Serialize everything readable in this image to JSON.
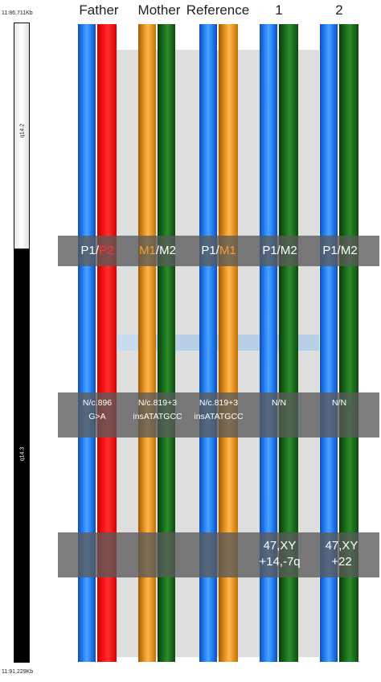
{
  "coords": {
    "top": "11:86,711Kb",
    "bottom": "11:91,229Kb"
  },
  "ideogram": {
    "band_top": "q14.2",
    "band_bottom": "q14.3"
  },
  "columns": [
    {
      "header": "Father",
      "tracks": [
        "blue",
        "red"
      ],
      "hap": [
        "P1",
        "P2"
      ],
      "hap_colors": [
        "#ffffff",
        "#ff3030"
      ],
      "variant": [
        "N/c.896",
        "G>A"
      ],
      "karyotype": [
        "",
        ""
      ]
    },
    {
      "header": "Mother",
      "tracks": [
        "orange",
        "green"
      ],
      "hap": [
        "M1",
        "M2"
      ],
      "hap_colors": [
        "#f0a030",
        "#ffffff"
      ],
      "variant": [
        "N/c.819+3",
        "insATATGCC"
      ],
      "karyotype": [
        "",
        ""
      ]
    },
    {
      "header": "Reference",
      "tracks": [
        "blue",
        "orange"
      ],
      "hap": [
        "P1",
        "M1"
      ],
      "hap_colors": [
        "#ffffff",
        "#f0a030"
      ],
      "variant": [
        "N/c.819+3",
        "insATATGCC"
      ],
      "karyotype": [
        "",
        ""
      ]
    },
    {
      "header": "1",
      "tracks": [
        "blue",
        "green"
      ],
      "hap": [
        "P1",
        "M2"
      ],
      "hap_colors": [
        "#ffffff",
        "#ffffff"
      ],
      "variant": [
        "N/N",
        ""
      ],
      "karyotype": [
        "47,XY",
        "+14,-7q"
      ]
    },
    {
      "header": "2",
      "tracks": [
        "blue",
        "green"
      ],
      "hap": [
        "P1",
        "M2"
      ],
      "hap_colors": [
        "#ffffff",
        "#ffffff"
      ],
      "variant": [
        "N/N",
        ""
      ],
      "karyotype": [
        "47,XY",
        "+22"
      ]
    }
  ],
  "colors": {
    "paternal_1": "#2d8cff",
    "paternal_2": "#ff1a1a",
    "maternal_1": "#f0a030",
    "maternal_2": "#1e7a1e",
    "overlay": "#5a5a5a"
  }
}
